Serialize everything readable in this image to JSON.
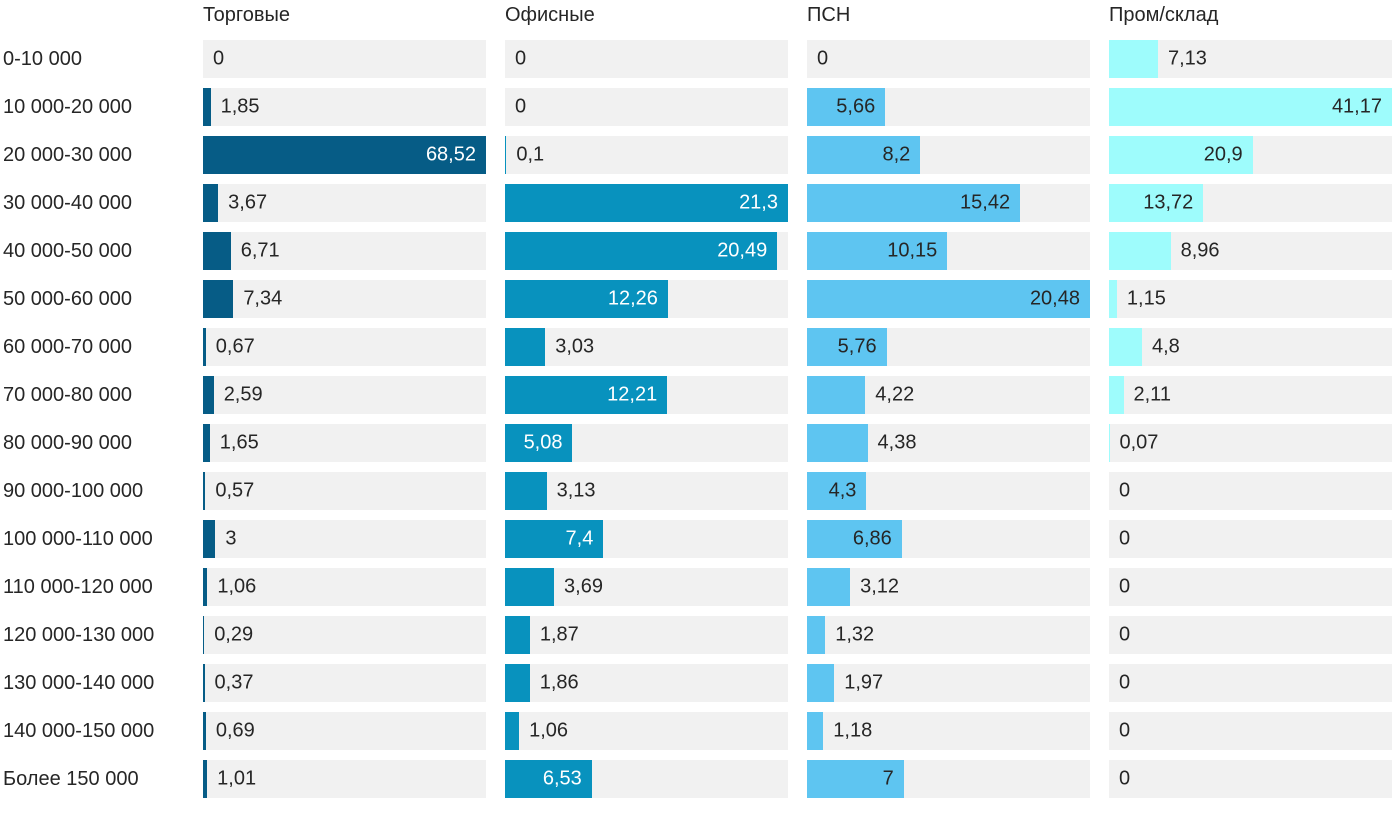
{
  "chart_data": {
    "type": "bar",
    "orientation": "horizontal",
    "title": "",
    "xlabel": "",
    "ylabel": "",
    "grid": false,
    "legend_position": "top-as-column-headers",
    "scaling": "each series scaled independently so its max value fills the full track width",
    "track_color": "#f1f1f1",
    "text_color": "#262626",
    "categories": [
      "0-10 000",
      "10 000-20 000",
      "20 000-30 000",
      "30 000-40 000",
      "40 000-50 000",
      "50 000-60 000",
      "60 000-70 000",
      "70 000-80 000",
      "80 000-90 000",
      "90 000-100 000",
      "100 000-110 000",
      "110 000-120 000",
      "120 000-130 000",
      "130 000-140 000",
      "140 000-150 000",
      "Более 150 000"
    ],
    "series": [
      {
        "name": "Торговые",
        "color": "#065c86",
        "label_color_inside": "#ffffff",
        "values": [
          0,
          1.85,
          68.52,
          3.67,
          6.71,
          7.34,
          0.67,
          2.59,
          1.65,
          0.57,
          3,
          1.06,
          0.29,
          0.37,
          0.69,
          1.01
        ],
        "display": [
          "0",
          "1,85",
          "68,52",
          "3,67",
          "6,71",
          "7,34",
          "0,67",
          "2,59",
          "1,65",
          "0,57",
          "3",
          "1,06",
          "0,29",
          "0,37",
          "0,69",
          "1,01"
        ]
      },
      {
        "name": "Офисные",
        "color": "#0892be",
        "label_color_inside": "#ffffff",
        "values": [
          0,
          0,
          0.1,
          21.3,
          20.49,
          12.26,
          3.03,
          12.21,
          5.08,
          3.13,
          7.4,
          3.69,
          1.87,
          1.86,
          1.06,
          6.53
        ],
        "display": [
          "0",
          "0",
          "0,1",
          "21,3",
          "20,49",
          "12,26",
          "3,03",
          "12,21",
          "5,08",
          "3,13",
          "7,4",
          "3,69",
          "1,87",
          "1,86",
          "1,06",
          "6,53"
        ]
      },
      {
        "name": "ПСН",
        "color": "#5ec5f1",
        "label_color_inside": "#262626",
        "values": [
          0,
          5.66,
          8.2,
          15.42,
          10.15,
          20.48,
          5.76,
          4.22,
          4.38,
          4.3,
          6.86,
          3.12,
          1.32,
          1.97,
          1.18,
          7
        ],
        "display": [
          "0",
          "5,66",
          "8,2",
          "15,42",
          "10,15",
          "20,48",
          "5,76",
          "4,22",
          "4,38",
          "4,3",
          "6,86",
          "3,12",
          "1,32",
          "1,97",
          "1,18",
          "7"
        ]
      },
      {
        "name": "Пром/склад",
        "color": "#9efcfc",
        "label_color_inside": "#262626",
        "values": [
          7.13,
          41.17,
          20.9,
          13.72,
          8.96,
          1.15,
          4.8,
          2.11,
          0.07,
          0,
          0,
          0,
          0,
          0,
          0,
          0
        ],
        "display": [
          "7,13",
          "41,17",
          "20,9",
          "13,72",
          "8,96",
          "1,15",
          "4,8",
          "2,11",
          "0,07",
          "0",
          "0",
          "0",
          "0",
          "0",
          "0",
          "0"
        ]
      }
    ]
  }
}
